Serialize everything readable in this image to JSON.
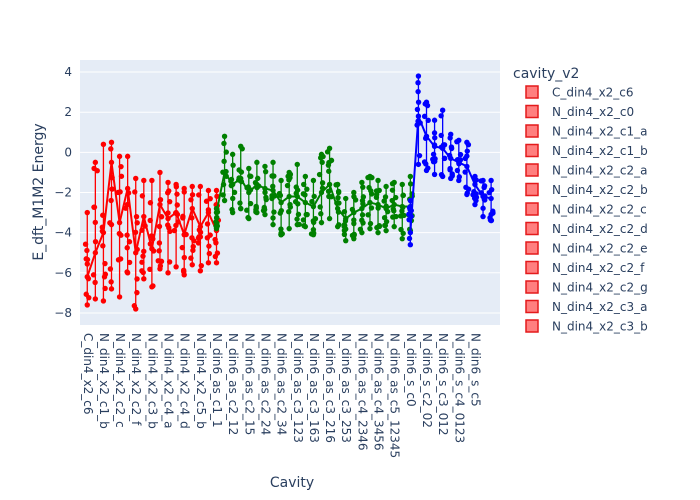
{
  "chart_data": {
    "type": "scatter",
    "mode": "lines+markers",
    "xlabel": "Cavity",
    "ylabel": "E_dft_M1M2 Energy",
    "ylim": [
      -8.6,
      4.6
    ],
    "yticks": [
      4,
      2,
      0,
      -2,
      -4,
      -6,
      -8
    ],
    "grid": true,
    "legend": {
      "title": "cavity_v2",
      "placement": "right",
      "entries": [
        "C_din4_x2_c6",
        "N_din4_x2_c0",
        "N_din4_x2_c1_a",
        "N_din4_x2_c1_b",
        "N_din4_x2_c2_a",
        "N_din4_x2_c2_b",
        "N_din4_x2_c2_c",
        "N_din4_x2_c2_d",
        "N_din4_x2_c2_e",
        "N_din4_x2_c2_f",
        "N_din4_x2_c2_g",
        "N_din4_x2_c3_a",
        "N_din4_x2_c3_b"
      ],
      "marker_color": "#ff7f7f",
      "marker_border": "#e41a1c"
    },
    "categories": [
      "C_din4_x2_c6",
      "N_din4_x2_c1_b",
      "N_din4_x2_c2_c",
      "N_din4_x2_c2_f",
      "N_din4_x2_c3_b",
      "N_din4_x2_c4_a",
      "N_din4_x2_c4_d",
      "N_din4_x2_c5_b",
      "N_din6_as_c1_1",
      "N_din6_as_c2_12",
      "N_din6_as_c2_15",
      "N_din6_as_c2_24",
      "N_din6_as_c2_34",
      "N_din6_as_c3_123",
      "N_din6_as_c3_163",
      "N_din6_as_c3_216",
      "N_din6_as_c3_253",
      "N_din6_as_c4_2346",
      "N_din6_as_c4_3456",
      "N_din6_as_c5_12345",
      "N_din6_s_c0",
      "N_din6_s_c2_02",
      "N_din6_s_c3_012",
      "N_din6_s_c4_0123",
      "N_din6_s_c5"
    ],
    "series": [
      {
        "color": "#ff0000",
        "x": [
          0,
          0.5,
          1,
          1.5,
          2,
          2.5,
          3,
          3.5,
          4,
          4.5,
          5,
          5.5,
          6,
          6.5,
          7,
          7.5,
          8
        ],
        "y": [
          -6.2,
          -5.0,
          -4.0,
          -0.5,
          -3.5,
          -1.8,
          -5.0,
          -3.2,
          -4.8,
          -2.6,
          -3.3,
          -3.0,
          -4.1,
          -2.8,
          -3.7,
          -3.0,
          -3.9
        ],
        "ymin": [
          -7.6,
          -7.3,
          -7.4,
          -6.8,
          -7.2,
          -6.0,
          -7.8,
          -6.3,
          -6.7,
          -5.8,
          -6.0,
          -5.7,
          -6.1,
          -5.6,
          -5.9,
          -5.5,
          -5.5
        ],
        "ymax": [
          -3.0,
          -0.5,
          0.4,
          0.5,
          -0.2,
          -0.2,
          -1.3,
          -1.4,
          -1.4,
          -1.0,
          -1.5,
          -1.6,
          -1.8,
          -1.7,
          -1.7,
          -1.9,
          -1.9
        ]
      },
      {
        "color": "#008000",
        "x": [
          8,
          8.5,
          9,
          9.5,
          10,
          10.5,
          11,
          11.5,
          12,
          12.5,
          13,
          13.5,
          14,
          14.5,
          15,
          15.5,
          16,
          16.5,
          17,
          17.5,
          18,
          18.5,
          19,
          19.5,
          20
        ],
        "y": [
          -3.0,
          -1.0,
          -1.6,
          -1.3,
          -2.0,
          -1.6,
          -1.8,
          -1.9,
          -2.5,
          -2.2,
          -2.2,
          -2.5,
          -2.7,
          -2.0,
          -1.6,
          -2.8,
          -3.3,
          -3.0,
          -2.8,
          -2.5,
          -2.6,
          -2.8,
          -2.6,
          -2.7,
          -2.7
        ],
        "ymin": [
          -3.8,
          -2.4,
          -3.0,
          -2.8,
          -3.3,
          -3.0,
          -3.1,
          -3.6,
          -4.1,
          -3.8,
          -3.6,
          -3.7,
          -4.1,
          -3.5,
          -3.3,
          -3.7,
          -4.4,
          -4.3,
          -4.0,
          -3.8,
          -4.0,
          -3.9,
          -3.7,
          -4.3,
          -3.9
        ],
        "ymax": [
          -2.8,
          0.8,
          -0.1,
          0.3,
          -0.8,
          -0.5,
          -0.7,
          -0.5,
          -1.4,
          -1.0,
          -0.6,
          -1.2,
          -1.4,
          -0.1,
          0.2,
          -1.6,
          -2.3,
          -2.0,
          -1.5,
          -1.2,
          -1.4,
          -1.7,
          -1.5,
          -1.6,
          -1.2
        ]
      },
      {
        "color": "#0000ff",
        "x": [
          20,
          20.5,
          21,
          21.5,
          22,
          22.5,
          23,
          23.5,
          24,
          24.5,
          25
        ],
        "y": [
          -4.0,
          1.8,
          0.8,
          0.3,
          0.2,
          -0.3,
          -0.5,
          -0.7,
          -1.6,
          -2.2,
          -2.3
        ],
        "ymin": [
          -4.6,
          -0.6,
          -0.9,
          -1.1,
          -1.2,
          -1.3,
          -1.4,
          -2.1,
          -2.6,
          -3.2,
          -3.4
        ],
        "ymax": [
          -2.4,
          3.8,
          2.5,
          1.6,
          2.1,
          0.9,
          0.6,
          0.5,
          -1.2,
          -1.4,
          -1.4
        ]
      }
    ]
  }
}
